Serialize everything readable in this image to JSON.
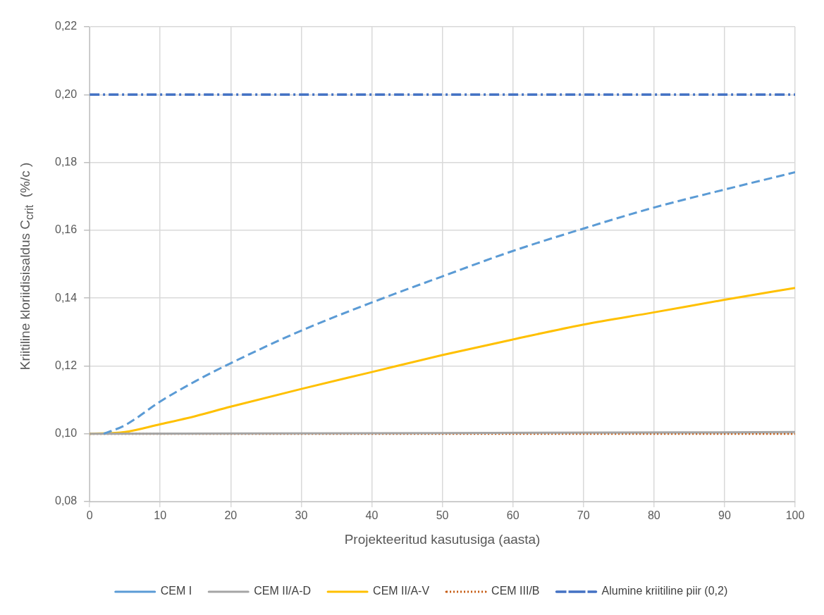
{
  "chart_data": {
    "type": "line",
    "xlabel": "Projekteeritud kasutusiga (aasta)",
    "ylabel": "Kriitiline kloriidisisaldus C$_{crit}$  (%/c )",
    "xlim": [
      0,
      100
    ],
    "xticks": [
      0,
      10,
      20,
      30,
      40,
      50,
      60,
      70,
      80,
      90,
      100
    ],
    "ylim": [
      0.08,
      0.22
    ],
    "yticks": [
      {
        "value": 0.08,
        "label": "0,08"
      },
      {
        "value": 0.1,
        "label": "0,10"
      },
      {
        "value": 0.12,
        "label": "0,12"
      },
      {
        "value": 0.14,
        "label": "0,14"
      },
      {
        "value": 0.16,
        "label": "0,16"
      },
      {
        "value": 0.18,
        "label": "0,18"
      },
      {
        "value": 0.2,
        "label": "0,20"
      },
      {
        "value": 0.22,
        "label": "0,22"
      }
    ],
    "grid": true,
    "legend": "bottom",
    "marker": "none",
    "series": [
      {
        "name": "CEM I",
        "color": "#5b9bd5",
        "line_style": "dashed",
        "x": [
          2,
          5,
          10,
          15,
          20,
          30,
          40,
          50,
          60,
          70,
          80,
          90,
          100
        ],
        "values": [
          0.1,
          0.1025,
          0.1095,
          0.1155,
          0.1208,
          0.1304,
          0.1387,
          0.1464,
          0.1539,
          0.1605,
          0.1667,
          0.172,
          0.1771
        ]
      },
      {
        "name": "CEM II/A-D",
        "color": "#a5a5a5",
        "line_style": "solid",
        "x": [
          0,
          50,
          100
        ],
        "values": [
          0.1,
          0.1002,
          0.1005
        ]
      },
      {
        "name": "CEM II/A-V",
        "color": "#ffc000",
        "line_style": "solid",
        "x": [
          0,
          5,
          10,
          15,
          20,
          30,
          40,
          50,
          60,
          70,
          80,
          90,
          100
        ],
        "values": [
          0.1,
          0.1005,
          0.1028,
          0.1052,
          0.108,
          0.1132,
          0.1182,
          0.1232,
          0.1278,
          0.1322,
          0.1358,
          0.1395,
          0.143
        ]
      },
      {
        "name": "CEM III/B",
        "color": "#c55a11",
        "line_style": "dotted",
        "x": [
          0,
          100
        ],
        "values": [
          0.1,
          0.1
        ]
      },
      {
        "name": "Alumine kriitiline piir (0,2)",
        "color": "#4472c4",
        "line_style": "dashdot",
        "x": [
          0,
          100
        ],
        "values": [
          0.2,
          0.2
        ]
      }
    ]
  }
}
